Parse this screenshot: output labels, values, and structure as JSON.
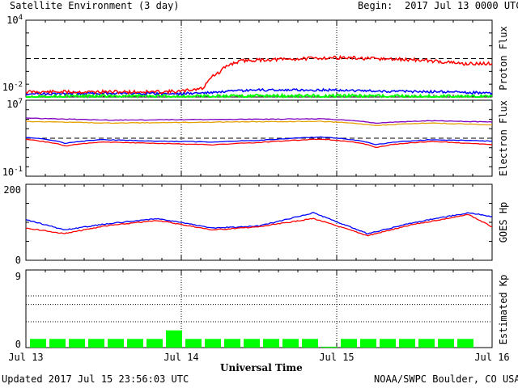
{
  "header": {
    "title": "Satellite Environment (3 day)",
    "begin_label": "Begin:",
    "begin_value": "2017 Jul 13 0000 UTC"
  },
  "footer": {
    "updated": "Updated 2017 Jul 15 23:56:03 UTC",
    "credit": "NOAA/SWPC Boulder, CO USA"
  },
  "colors": {
    "red": "#ff0000",
    "blue": "#0000ff",
    "green": "#00ff00",
    "orange": "#e6a000",
    "purple": "#8000c0",
    "black": "#000000"
  },
  "chart_data": [
    {
      "type": "line",
      "panel": "proton",
      "ylabel": "Proton Flux",
      "yscale": "log",
      "ylim_exp": [
        -2,
        4
      ],
      "y_ticks": [
        {
          "base": "10",
          "exp": "4"
        },
        {
          "base": "10",
          "exp": "-2"
        }
      ],
      "threshold": 10,
      "x_ticks": [
        "Jul 13",
        "Jul 14",
        "Jul 15",
        "Jul 16"
      ],
      "series": [
        {
          "color": "red",
          "day": [
            0,
            0.4,
            0.8,
            1.0,
            1.15,
            1.25,
            1.4,
            1.7,
            2.0,
            2.2,
            2.5,
            2.8,
            3.0
          ],
          "values": [
            0.025,
            0.025,
            0.025,
            0.027,
            0.05,
            0.8,
            7,
            9,
            12,
            10,
            8,
            4,
            4
          ]
        },
        {
          "color": "blue",
          "day": [
            0,
            0.5,
            1.0,
            1.2,
            1.5,
            2.0,
            2.3,
            2.7,
            3.0
          ],
          "values": [
            0.018,
            0.02,
            0.018,
            0.022,
            0.035,
            0.035,
            0.028,
            0.025,
            0.02
          ]
        },
        {
          "color": "green",
          "day": [
            0,
            0.5,
            1.0,
            1.5,
            2.0,
            2.5,
            3.0
          ],
          "values": [
            0.011,
            0.012,
            0.011,
            0.012,
            0.012,
            0.011,
            0.011
          ]
        }
      ]
    },
    {
      "type": "line",
      "panel": "electron",
      "ylabel": "Electron Flux",
      "yscale": "log",
      "ylim_exp": [
        -1,
        7
      ],
      "y_ticks": [
        {
          "base": "10",
          "exp": "7"
        },
        {
          "base": "10",
          "exp": "-1"
        }
      ],
      "threshold": 1000,
      "series": [
        {
          "color": "purple",
          "day": [
            0,
            0.5,
            1.0,
            1.5,
            1.9,
            2.25,
            2.6,
            3.0
          ],
          "values": [
            130000,
            80000,
            90000,
            100000,
            110000,
            40000,
            70000,
            50000
          ]
        },
        {
          "color": "orange",
          "day": [
            0,
            0.5,
            1.0,
            1.5,
            1.9,
            2.25,
            2.6,
            3.0
          ],
          "values": [
            60000,
            40000,
            45000,
            55000,
            60000,
            22000,
            40000,
            25000
          ]
        },
        {
          "color": "blue",
          "day": [
            0,
            0.25,
            0.5,
            0.8,
            1.2,
            1.5,
            1.9,
            2.25,
            2.6,
            3.0
          ],
          "values": [
            1200,
            300,
            700,
            500,
            400,
            600,
            1300,
            200,
            700,
            500
          ]
        },
        {
          "color": "red",
          "day": [
            0,
            0.25,
            0.5,
            0.8,
            1.2,
            1.5,
            1.9,
            2.25,
            2.6,
            3.0
          ],
          "values": [
            700,
            150,
            400,
            300,
            200,
            350,
            800,
            100,
            450,
            200
          ]
        }
      ]
    },
    {
      "type": "line",
      "panel": "hp",
      "ylabel": "GOES Hp",
      "ylim": [
        0,
        200
      ],
      "y_ticks": [
        "200",
        "0"
      ],
      "series": [
        {
          "color": "blue",
          "day": [
            0,
            0.25,
            0.5,
            0.85,
            1.2,
            1.5,
            1.85,
            2.2,
            2.5,
            2.85,
            3.0
          ],
          "values": [
            107,
            80,
            95,
            110,
            85,
            90,
            125,
            70,
            100,
            125,
            115
          ]
        },
        {
          "color": "red",
          "day": [
            0,
            0.25,
            0.5,
            0.85,
            1.2,
            1.5,
            1.85,
            2.2,
            2.5,
            2.85,
            3.0
          ],
          "values": [
            85,
            70,
            90,
            105,
            80,
            88,
            110,
            65,
            95,
            120,
            88
          ]
        }
      ]
    },
    {
      "type": "bar",
      "panel": "kp",
      "ylabel": "Estimated Kp",
      "ylim": [
        0,
        9
      ],
      "y_ticks": [
        "9",
        "0"
      ],
      "values": [
        1,
        1,
        1,
        1,
        1,
        1,
        1,
        2,
        1,
        1,
        1,
        1,
        1,
        1,
        1,
        0.1,
        1,
        1,
        1,
        1,
        1,
        1,
        1
      ]
    }
  ]
}
